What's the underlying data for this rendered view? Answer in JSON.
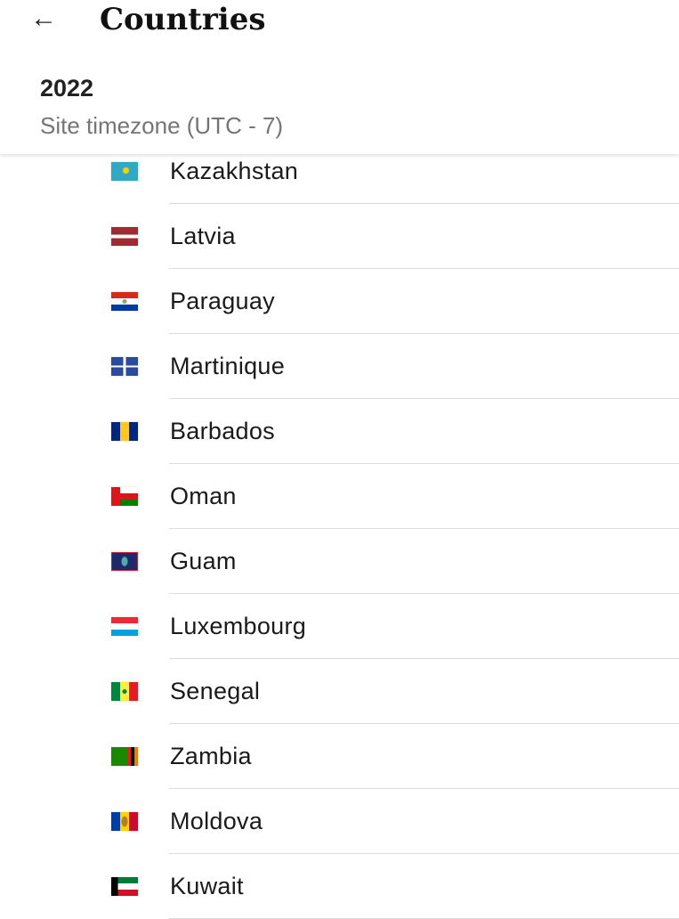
{
  "header": {
    "back_icon": "←",
    "title": "Countries",
    "year": "2022",
    "timezone": "Site timezone (UTC - 7)"
  },
  "countries": [
    {
      "name": "Kazakhstan",
      "flag": "kz"
    },
    {
      "name": "Latvia",
      "flag": "lv"
    },
    {
      "name": "Paraguay",
      "flag": "py"
    },
    {
      "name": "Martinique",
      "flag": "mq"
    },
    {
      "name": "Barbados",
      "flag": "bb"
    },
    {
      "name": "Oman",
      "flag": "om"
    },
    {
      "name": "Guam",
      "flag": "gu"
    },
    {
      "name": "Luxembourg",
      "flag": "lu"
    },
    {
      "name": "Senegal",
      "flag": "sn"
    },
    {
      "name": "Zambia",
      "flag": "zm"
    },
    {
      "name": "Moldova",
      "flag": "md"
    },
    {
      "name": "Kuwait",
      "flag": "kw"
    }
  ]
}
